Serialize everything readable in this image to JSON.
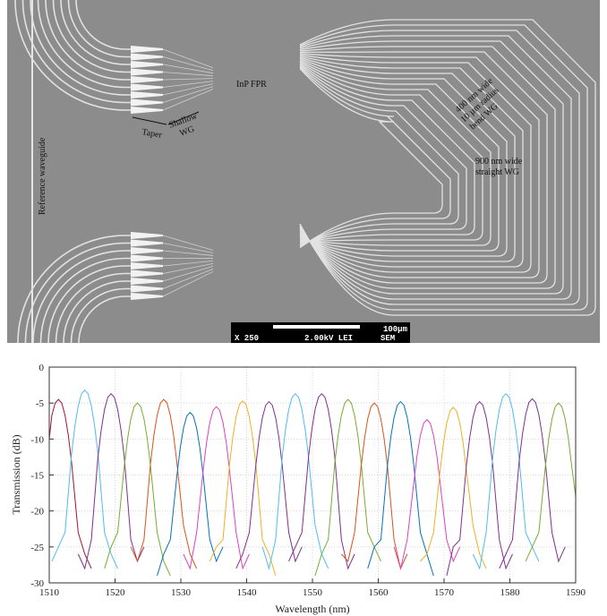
{
  "image": {
    "labels": {
      "reference_waveguide": "Reference waveguide",
      "taper": "Taper",
      "shallow_wg": [
        "Shallow",
        "WG"
      ],
      "fpr": "InP FPR",
      "bend_wg": [
        "400 nm wide",
        "10 µm radius",
        "bend WG"
      ],
      "straight_wg": [
        "900 nm wide",
        "straight WG"
      ]
    },
    "scale_bar": {
      "length": "100µm",
      "magnification": "X 250",
      "voltage": "2.00kV LEI",
      "mode": "SEM"
    }
  },
  "chart_data": {
    "type": "line",
    "xlabel": "Wavelength (nm)",
    "ylabel": "Transmission (dB)",
    "xlim": [
      1510,
      1590
    ],
    "xticks": [
      1510,
      1520,
      1530,
      1540,
      1550,
      1560,
      1570,
      1580,
      1590
    ],
    "ylim": [
      -30,
      0
    ],
    "yticks": [
      0,
      -5,
      -10,
      -15,
      -20,
      -25,
      -30
    ],
    "grid": true,
    "series": [
      {
        "color": "#A2142F",
        "x": [
          1510,
          1510.4,
          1510.9,
          1511.4,
          1511.9,
          1512.4,
          1512.9,
          1513.4,
          1514.4,
          1515.4,
          1516.4
        ],
        "values": [
          -10,
          -6.7,
          -5,
          -4.5,
          -5,
          -6.7,
          -9.5,
          -13.3,
          -23,
          -26,
          -28
        ]
      },
      {
        "color": "#4DBEEE",
        "x": [
          1510.4,
          1511.4,
          1512.4,
          1513.4,
          1513.9,
          1514.4,
          1514.9,
          1515.4,
          1515.9,
          1516.4,
          1516.9,
          1517.4,
          1518.4,
          1519.4,
          1520.4
        ],
        "values": [
          -27,
          -25,
          -23,
          -12,
          -8.2,
          -5.4,
          -3.7,
          -3.2,
          -3.7,
          -5.4,
          -8.2,
          -12,
          -23,
          -26,
          -28
        ]
      },
      {
        "color": "#7E2F8E",
        "x": [
          1514.4,
          1515.4,
          1516.4,
          1517.4,
          1517.9,
          1518.4,
          1518.9,
          1519.4,
          1519.9,
          1520.4,
          1520.9,
          1521.4,
          1522.4,
          1523.4,
          1524.4
        ],
        "values": [
          -26,
          -28,
          -24,
          -12.5,
          -8.7,
          -5.9,
          -4.2,
          -3.7,
          -4.2,
          -5.9,
          -8.7,
          -12.5,
          -24,
          -27,
          -25
        ]
      },
      {
        "color": "#77AC30",
        "x": [
          1518.4,
          1519.4,
          1520.4,
          1521.4,
          1521.9,
          1522.4,
          1522.9,
          1523.4,
          1523.9,
          1524.4,
          1524.9,
          1525.4,
          1526.4,
          1527.4,
          1528.4
        ],
        "values": [
          -28,
          -25,
          -23,
          -13.8,
          -10,
          -7.2,
          -5.5,
          -5,
          -5.5,
          -7.2,
          -10,
          -13.8,
          -23,
          -27,
          -29
        ]
      },
      {
        "color": "#D95319",
        "x": [
          1522.4,
          1523.4,
          1524.4,
          1525.4,
          1525.9,
          1526.4,
          1526.9,
          1527.4,
          1527.9,
          1528.4,
          1528.9,
          1529.4,
          1530.4,
          1531.4,
          1532.4
        ],
        "values": [
          -25,
          -27,
          -24,
          -13.3,
          -9.5,
          -6.7,
          -5,
          -4.5,
          -5,
          -6.7,
          -9.5,
          -13.3,
          -22,
          -26,
          -28
        ]
      },
      {
        "color": "#0072BD",
        "x": [
          1526.4,
          1527.4,
          1528.4,
          1529.4,
          1529.9,
          1530.4,
          1530.9,
          1531.4,
          1531.9,
          1532.4,
          1532.9,
          1533.4,
          1534.4,
          1535.4,
          1536.4
        ],
        "values": [
          -29,
          -26,
          -24,
          -15.1,
          -11.3,
          -8.5,
          -6.8,
          -6.3,
          -6.8,
          -8.5,
          -11.3,
          -15.1,
          -24,
          -27,
          -25
        ]
      },
      {
        "color": "#E040C0",
        "x": [
          1530.4,
          1531.4,
          1532.4,
          1533.4,
          1533.9,
          1534.4,
          1534.9,
          1535.4,
          1535.9,
          1536.4,
          1536.9,
          1537.4,
          1538.4,
          1539.4,
          1540.4
        ],
        "values": [
          -26,
          -28,
          -23,
          -14.3,
          -10.5,
          -7.7,
          -6,
          -5.5,
          -6,
          -7.7,
          -10.5,
          -14.3,
          -23,
          -28,
          -26
        ]
      },
      {
        "color": "#EDB120",
        "x": [
          1534.4,
          1535.4,
          1536.4,
          1537.4,
          1537.9,
          1538.4,
          1538.9,
          1539.4,
          1539.9,
          1540.4,
          1540.9,
          1541.4,
          1542.4,
          1543.4,
          1544.4
        ],
        "values": [
          -27,
          -25,
          -24,
          -13.5,
          -9.7,
          -6.9,
          -5.2,
          -4.7,
          -5.2,
          -6.9,
          -9.7,
          -13.5,
          -24,
          -26,
          -29
        ]
      },
      {
        "color": "#7E2F8E",
        "x": [
          1538.4,
          1539.4,
          1540.4,
          1541.4,
          1541.9,
          1542.4,
          1542.9,
          1543.4,
          1543.9,
          1544.4,
          1544.9,
          1545.4,
          1546.4,
          1547.4,
          1548.4
        ],
        "values": [
          -28,
          -26,
          -23,
          -13.6,
          -9.8,
          -7,
          -5.3,
          -4.8,
          -5.3,
          -7,
          -9.8,
          -13.6,
          -23,
          -27,
          -25
        ]
      },
      {
        "color": "#4DBEEE",
        "x": [
          1542.4,
          1543.4,
          1544.4,
          1545.4,
          1545.9,
          1546.4,
          1546.9,
          1547.4,
          1547.9,
          1548.4,
          1548.9,
          1549.4,
          1550.4,
          1551.4,
          1552.4
        ],
        "values": [
          -25,
          -28,
          -24,
          -12.5,
          -8.7,
          -5.9,
          -4.2,
          -3.7,
          -4.2,
          -5.9,
          -8.7,
          -12.5,
          -22,
          -26,
          -28
        ]
      },
      {
        "color": "#7E2F8E",
        "x": [
          1546.4,
          1547.4,
          1548.4,
          1549.4,
          1549.9,
          1550.4,
          1550.9,
          1551.4,
          1551.9,
          1552.4,
          1552.9,
          1553.4,
          1554.4,
          1555.4,
          1556.4
        ],
        "values": [
          -27,
          -25,
          -23,
          -12.5,
          -8.7,
          -5.9,
          -4.2,
          -3.7,
          -4.2,
          -5.9,
          -8.7,
          -12.5,
          -24,
          -28,
          -26
        ]
      },
      {
        "color": "#77AC30",
        "x": [
          1550.4,
          1551.4,
          1552.4,
          1553.4,
          1553.9,
          1554.4,
          1554.9,
          1555.4,
          1555.9,
          1556.4,
          1556.9,
          1557.4,
          1558.4,
          1559.4,
          1560.4
        ],
        "values": [
          -29,
          -26,
          -24,
          -13.3,
          -9.5,
          -6.7,
          -5,
          -4.5,
          -5,
          -6.7,
          -9.5,
          -13.3,
          -23,
          -25,
          -27
        ]
      },
      {
        "color": "#D95319",
        "x": [
          1554.4,
          1555.4,
          1556.4,
          1557.4,
          1557.9,
          1558.4,
          1558.9,
          1559.4,
          1559.9,
          1560.4,
          1560.9,
          1561.4,
          1562.4,
          1563.4,
          1564.4
        ],
        "values": [
          -26,
          -27,
          -23,
          -13.8,
          -10,
          -7.2,
          -5.5,
          -5,
          -5.5,
          -7.2,
          -10,
          -13.8,
          -24,
          -28,
          -26
        ]
      },
      {
        "color": "#0072BD",
        "x": [
          1558.4,
          1559.4,
          1560.4,
          1561.4,
          1561.9,
          1562.4,
          1562.9,
          1563.4,
          1563.9,
          1564.4,
          1564.9,
          1565.4,
          1566.4,
          1567.4,
          1568.4
        ],
        "values": [
          -28,
          -25,
          -24,
          -13.6,
          -9.8,
          -7,
          -5.3,
          -4.8,
          -5.3,
          -7,
          -9.8,
          -13.6,
          -23,
          -26,
          -29
        ]
      },
      {
        "color": "#E040C0",
        "x": [
          1562.4,
          1563.4,
          1564.4,
          1565.4,
          1565.9,
          1566.4,
          1566.9,
          1567.4,
          1567.9,
          1568.4,
          1568.9,
          1569.4,
          1570.4,
          1571.4,
          1572.4
        ],
        "values": [
          -25,
          -28,
          -24,
          -16.1,
          -12.3,
          -9.5,
          -7.8,
          -7.3,
          -7.8,
          -9.5,
          -12.3,
          -16.1,
          -24,
          -27,
          -25
        ]
      },
      {
        "color": "#EDB120",
        "x": [
          1566.4,
          1567.4,
          1568.4,
          1569.4,
          1569.9,
          1570.4,
          1570.9,
          1571.4,
          1571.9,
          1572.4,
          1572.9,
          1573.4,
          1574.4,
          1575.4,
          1576.4
        ],
        "values": [
          -27,
          -26,
          -23,
          -14.4,
          -10.6,
          -7.8,
          -6.1,
          -5.6,
          -6.1,
          -7.8,
          -10.6,
          -14.4,
          -22,
          -26,
          -28
        ]
      },
      {
        "color": "#7E2F8E",
        "x": [
          1570.4,
          1571.4,
          1572.4,
          1573.4,
          1573.9,
          1574.4,
          1574.9,
          1575.4,
          1575.9,
          1576.4,
          1576.9,
          1577.4,
          1578.4,
          1579.4,
          1580.4
        ],
        "values": [
          -29,
          -25,
          -24,
          -13.6,
          -9.8,
          -7,
          -5.3,
          -4.8,
          -5.3,
          -7,
          -9.8,
          -13.6,
          -24,
          -28,
          -26
        ]
      },
      {
        "color": "#4DBEEE",
        "x": [
          1574.4,
          1575.4,
          1576.4,
          1577.4,
          1577.9,
          1578.4,
          1578.9,
          1579.4,
          1579.9,
          1580.4,
          1580.9,
          1581.4,
          1582.4,
          1583.4,
          1584.4
        ],
        "values": [
          -26,
          -28,
          -23,
          -12.5,
          -8.7,
          -5.9,
          -4.2,
          -3.7,
          -4.2,
          -5.9,
          -8.7,
          -12.5,
          -23,
          -25,
          -27
        ]
      },
      {
        "color": "#7E2F8E",
        "x": [
          1578.4,
          1579.4,
          1580.4,
          1581.4,
          1581.9,
          1582.4,
          1582.9,
          1583.4,
          1583.9,
          1584.4,
          1584.9,
          1585.4,
          1586.4,
          1587.4,
          1588.4
        ],
        "values": [
          -28,
          -26,
          -24,
          -13.2,
          -9.4,
          -6.6,
          -4.9,
          -4.4,
          -4.9,
          -6.6,
          -9.4,
          -13.2,
          -23,
          -27,
          -25
        ]
      },
      {
        "color": "#77AC30",
        "x": [
          1582.4,
          1583.4,
          1584.4,
          1585.4,
          1585.9,
          1586.4,
          1586.9,
          1587.4,
          1587.9,
          1588.4,
          1588.9,
          1589.4,
          1590
        ],
        "values": [
          -27,
          -25,
          -23,
          -13.8,
          -10,
          -7.2,
          -5.5,
          -5,
          -5.5,
          -7.2,
          -10,
          -13.8,
          -18
        ]
      }
    ]
  }
}
